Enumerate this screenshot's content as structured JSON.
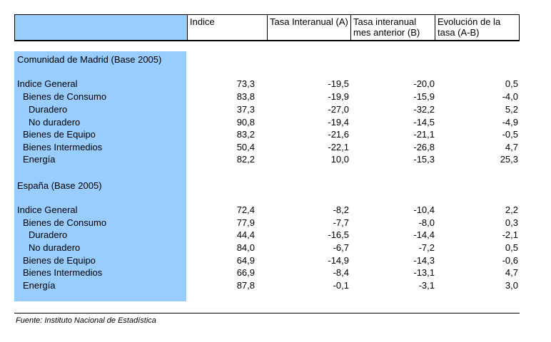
{
  "header": {
    "col1": "Indice",
    "col2": "Tasa Interanual (A)",
    "col3": "Tasa interanual mes anterior (B)",
    "col4": "Evolución de la tasa (A-B)"
  },
  "madrid": {
    "title": "Comunidad de Madrid (Base 2005)",
    "rows": [
      {
        "label": "Indice General",
        "indice": "73,3",
        "a": "-19,5",
        "b": "-20,0",
        "ab": "0,5"
      },
      {
        "label": "Bienes de Consumo",
        "indice": "83,8",
        "a": "-19,9",
        "b": "-15,9",
        "ab": "-4,0"
      },
      {
        "label": "Duradero",
        "indice": "37,3",
        "a": "-27,0",
        "b": "-32,2",
        "ab": "5,2"
      },
      {
        "label": "No duradero",
        "indice": "90,8",
        "a": "-19,4",
        "b": "-14,5",
        "ab": "-4,9"
      },
      {
        "label": "Bienes de Equipo",
        "indice": "83,2",
        "a": "-21,6",
        "b": "-21,1",
        "ab": "-0,5"
      },
      {
        "label": "Bienes Intermedios",
        "indice": "50,4",
        "a": "-22,1",
        "b": "-26,8",
        "ab": "4,7"
      },
      {
        "label": "Energía",
        "indice": "82,2",
        "a": "10,0",
        "b": "-15,3",
        "ab": "25,3"
      }
    ]
  },
  "espana": {
    "title": "España (Base 2005)",
    "rows": [
      {
        "label": "Indice General",
        "indice": "72,4",
        "a": "-8,2",
        "b": "-10,4",
        "ab": "2,2"
      },
      {
        "label": "Bienes de Consumo",
        "indice": "77,9",
        "a": "-7,7",
        "b": "-8,0",
        "ab": "0,3"
      },
      {
        "label": "Duradero",
        "indice": "44,4",
        "a": "-16,5",
        "b": "-14,4",
        "ab": "-2,1"
      },
      {
        "label": "No duradero",
        "indice": "84,0",
        "a": "-6,7",
        "b": "-7,2",
        "ab": "0,5"
      },
      {
        "label": "Bienes de Equipo",
        "indice": "64,9",
        "a": "-14,9",
        "b": "-14,3",
        "ab": "-0,6"
      },
      {
        "label": "Bienes Intermedios",
        "indice": "66,9",
        "a": "-8,4",
        "b": "-13,1",
        "ab": "4,7"
      },
      {
        "label": "Energía",
        "indice": "87,8",
        "a": "-0,1",
        "b": "-3,1",
        "ab": "3,0"
      }
    ]
  },
  "source": "Fuente: Instituto Nacional de Estadística"
}
